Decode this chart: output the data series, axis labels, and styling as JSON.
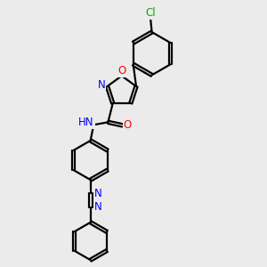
{
  "bg_color": "#ebebeb",
  "bond_color": "#000000",
  "n_color": "#0000ff",
  "o_color": "#ff0000",
  "cl_color": "#00aa00",
  "lw": 1.6,
  "xlim": [
    0,
    10
  ],
  "ylim": [
    0,
    10
  ],
  "fig_size": [
    3.0,
    3.0
  ],
  "dpi": 100
}
